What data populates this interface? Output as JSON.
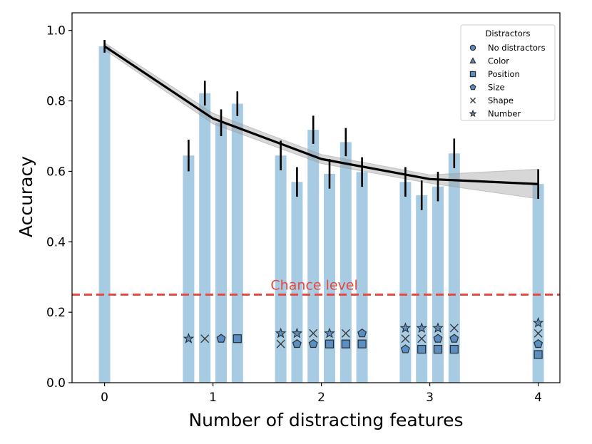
{
  "chart_data": {
    "type": "bar",
    "xlabel": "Number of distracting features",
    "ylabel": "Accuracy",
    "xlim": [
      -0.3,
      4.2
    ],
    "ylim": [
      0.0,
      1.05
    ],
    "xticks": [
      0,
      1,
      2,
      3,
      4
    ],
    "yticks": [
      0.0,
      0.2,
      0.4,
      0.6,
      0.8,
      1.0
    ],
    "xtick_labels": [
      "0",
      "1",
      "2",
      "3",
      "4"
    ],
    "ytick_labels": [
      "0.0",
      "0.2",
      "0.4",
      "0.6",
      "0.8",
      "1.0"
    ],
    "bar_color": "#a8cbe4",
    "bars": [
      {
        "x": 0.0,
        "value": 0.955,
        "err": 0.018
      },
      {
        "x": 0.775,
        "value": 0.645,
        "err": 0.045
      },
      {
        "x": 0.925,
        "value": 0.822,
        "err": 0.035
      },
      {
        "x": 1.075,
        "value": 0.738,
        "err": 0.038
      },
      {
        "x": 1.225,
        "value": 0.792,
        "err": 0.035
      },
      {
        "x": 1.625,
        "value": 0.645,
        "err": 0.042
      },
      {
        "x": 1.775,
        "value": 0.57,
        "err": 0.042
      },
      {
        "x": 1.925,
        "value": 0.718,
        "err": 0.04
      },
      {
        "x": 2.075,
        "value": 0.593,
        "err": 0.042
      },
      {
        "x": 2.225,
        "value": 0.683,
        "err": 0.04
      },
      {
        "x": 2.375,
        "value": 0.598,
        "err": 0.042
      },
      {
        "x": 2.775,
        "value": 0.57,
        "err": 0.042
      },
      {
        "x": 2.925,
        "value": 0.532,
        "err": 0.042
      },
      {
        "x": 3.075,
        "value": 0.557,
        "err": 0.042
      },
      {
        "x": 3.225,
        "value": 0.651,
        "err": 0.042
      },
      {
        "x": 4.0,
        "value": 0.564,
        "err": 0.042
      }
    ],
    "trend_line": {
      "x": [
        0,
        1,
        2,
        3,
        4
      ],
      "y": [
        0.955,
        0.75,
        0.635,
        0.578,
        0.564
      ],
      "ci_lower": [
        0.945,
        0.735,
        0.622,
        0.566,
        0.522
      ],
      "ci_upper": [
        0.965,
        0.765,
        0.648,
        0.59,
        0.606
      ],
      "color": "#000000"
    },
    "chance_level": {
      "value": 0.25,
      "label": "Chance level",
      "color": "#e8483c"
    },
    "distractor_markers": [
      {
        "x": 0.775,
        "symbols": [
          {
            "m": "star",
            "y": 0.125
          }
        ]
      },
      {
        "x": 0.925,
        "symbols": [
          {
            "m": "x",
            "y": 0.125
          }
        ]
      },
      {
        "x": 1.075,
        "symbols": [
          {
            "m": "pentagon",
            "y": 0.125
          }
        ]
      },
      {
        "x": 1.225,
        "symbols": [
          {
            "m": "square",
            "y": 0.125
          }
        ]
      },
      {
        "x": 1.625,
        "symbols": [
          {
            "m": "star",
            "y": 0.14
          },
          {
            "m": "x",
            "y": 0.11
          }
        ]
      },
      {
        "x": 1.775,
        "symbols": [
          {
            "m": "star",
            "y": 0.14
          },
          {
            "m": "pentagon",
            "y": 0.11
          }
        ]
      },
      {
        "x": 1.925,
        "symbols": [
          {
            "m": "x",
            "y": 0.14
          },
          {
            "m": "pentagon",
            "y": 0.11
          }
        ]
      },
      {
        "x": 2.075,
        "symbols": [
          {
            "m": "star",
            "y": 0.14
          },
          {
            "m": "square",
            "y": 0.11
          }
        ]
      },
      {
        "x": 2.225,
        "symbols": [
          {
            "m": "x",
            "y": 0.14
          },
          {
            "m": "square",
            "y": 0.11
          }
        ]
      },
      {
        "x": 2.375,
        "symbols": [
          {
            "m": "pentagon",
            "y": 0.14
          },
          {
            "m": "square",
            "y": 0.11
          }
        ]
      },
      {
        "x": 2.775,
        "symbols": [
          {
            "m": "star",
            "y": 0.155
          },
          {
            "m": "x",
            "y": 0.125
          },
          {
            "m": "pentagon",
            "y": 0.095
          }
        ]
      },
      {
        "x": 2.925,
        "symbols": [
          {
            "m": "star",
            "y": 0.155
          },
          {
            "m": "x",
            "y": 0.125
          },
          {
            "m": "square",
            "y": 0.095
          }
        ]
      },
      {
        "x": 3.075,
        "symbols": [
          {
            "m": "star",
            "y": 0.155
          },
          {
            "m": "pentagon",
            "y": 0.125
          },
          {
            "m": "square",
            "y": 0.095
          }
        ]
      },
      {
        "x": 3.225,
        "symbols": [
          {
            "m": "x",
            "y": 0.155
          },
          {
            "m": "pentagon",
            "y": 0.125
          },
          {
            "m": "square",
            "y": 0.095
          }
        ]
      },
      {
        "x": 4.0,
        "symbols": [
          {
            "m": "star",
            "y": 0.17
          },
          {
            "m": "x",
            "y": 0.14
          },
          {
            "m": "pentagon",
            "y": 0.11
          },
          {
            "m": "square",
            "y": 0.08
          }
        ]
      }
    ],
    "legend": {
      "title": "Distractors",
      "placement": "top-right",
      "entries": [
        {
          "marker": "circle",
          "label": "No distractors"
        },
        {
          "marker": "triangle",
          "label": "Color"
        },
        {
          "marker": "square",
          "label": "Position"
        },
        {
          "marker": "pentagon",
          "label": "Size"
        },
        {
          "marker": "x",
          "label": "Shape"
        },
        {
          "marker": "star",
          "label": "Number"
        }
      ]
    },
    "marker_color": "#5b8fc4"
  }
}
